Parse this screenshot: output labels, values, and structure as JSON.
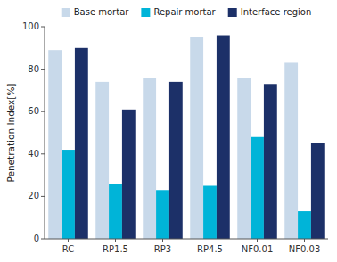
{
  "chart_data": {
    "type": "bar",
    "categories": [
      "RC",
      "RP1.5",
      "RP3",
      "RP4.5",
      "NF0.01",
      "NF0.03"
    ],
    "series": [
      {
        "name": "Base mortar",
        "color": "#c8d9ea",
        "values": [
          89,
          74,
          76,
          95,
          76,
          83
        ]
      },
      {
        "name": "Repair mortar",
        "color": "#00b4d8",
        "values": [
          42,
          26,
          23,
          25,
          48,
          13
        ]
      },
      {
        "name": "Interface region",
        "color": "#1c3068",
        "values": [
          90,
          61,
          74,
          96,
          73,
          45
        ]
      }
    ],
    "ylabel": "Penetration Index[%]",
    "ylim": [
      0,
      100
    ],
    "yticks": [
      0,
      20,
      40,
      60,
      80,
      100
    ],
    "legend": "top"
  }
}
